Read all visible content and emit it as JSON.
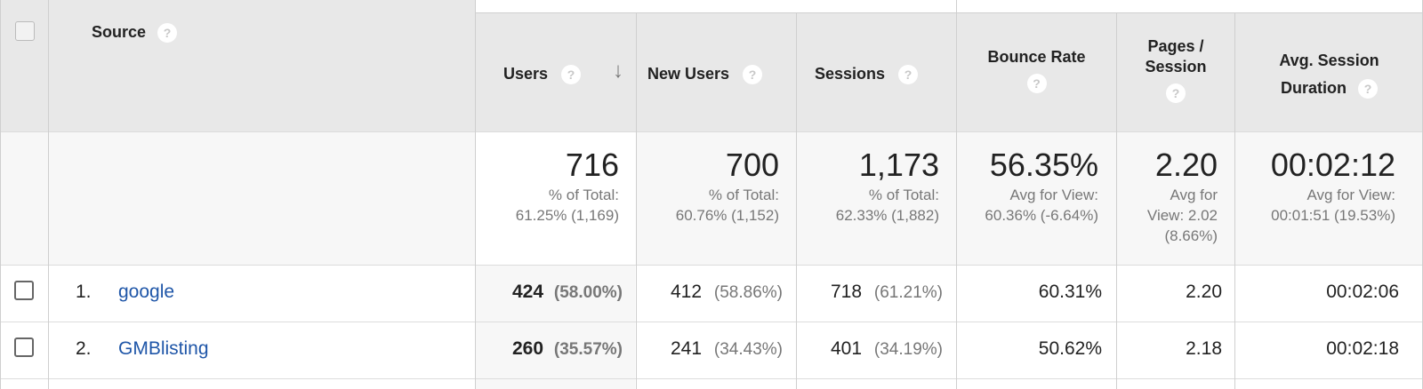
{
  "columns": {
    "source": "Source",
    "users": "Users",
    "new_users": "New Users",
    "sessions": "Sessions",
    "bounce_rate": "Bounce Rate",
    "pages_session_line1": "Pages /",
    "pages_session_line2": "Session",
    "avg_duration_line1": "Avg. Session",
    "avg_duration_line2": "Duration"
  },
  "icons": {
    "help": "?",
    "sort": "↓"
  },
  "summary": {
    "users": {
      "value": "716",
      "line1": "% of Total:",
      "line2": "61.25% (1,169)"
    },
    "new_users": {
      "value": "700",
      "line1": "% of Total:",
      "line2": "60.76% (1,152)"
    },
    "sessions": {
      "value": "1,173",
      "line1": "% of Total:",
      "line2": "62.33% (1,882)"
    },
    "bounce_rate": {
      "value": "56.35%",
      "line1": "Avg for View:",
      "line2": "60.36% (-6.64%)"
    },
    "pages_session": {
      "value": "2.20",
      "line1": "Avg for",
      "line2": "View: 2.02",
      "line3": "(8.66%)"
    },
    "avg_duration": {
      "value": "00:02:12",
      "line1": "Avg for View:",
      "line2": "00:01:51 (19.53%)"
    }
  },
  "rows": [
    {
      "num": "1.",
      "source": "google",
      "users": "424",
      "users_pct": "(58.00%)",
      "new_users": "412",
      "new_users_pct": "(58.86%)",
      "sessions": "718",
      "sessions_pct": "(61.21%)",
      "bounce_rate": "60.31%",
      "pages_session": "2.20",
      "avg_duration": "00:02:06"
    },
    {
      "num": "2.",
      "source": "GMBlisting",
      "users": "260",
      "users_pct": "(35.57%)",
      "new_users": "241",
      "new_users_pct": "(34.43%)",
      "sessions": "401",
      "sessions_pct": "(34.19%)",
      "bounce_rate": "50.62%",
      "pages_session": "2.18",
      "avg_duration": "00:02:18"
    }
  ]
}
